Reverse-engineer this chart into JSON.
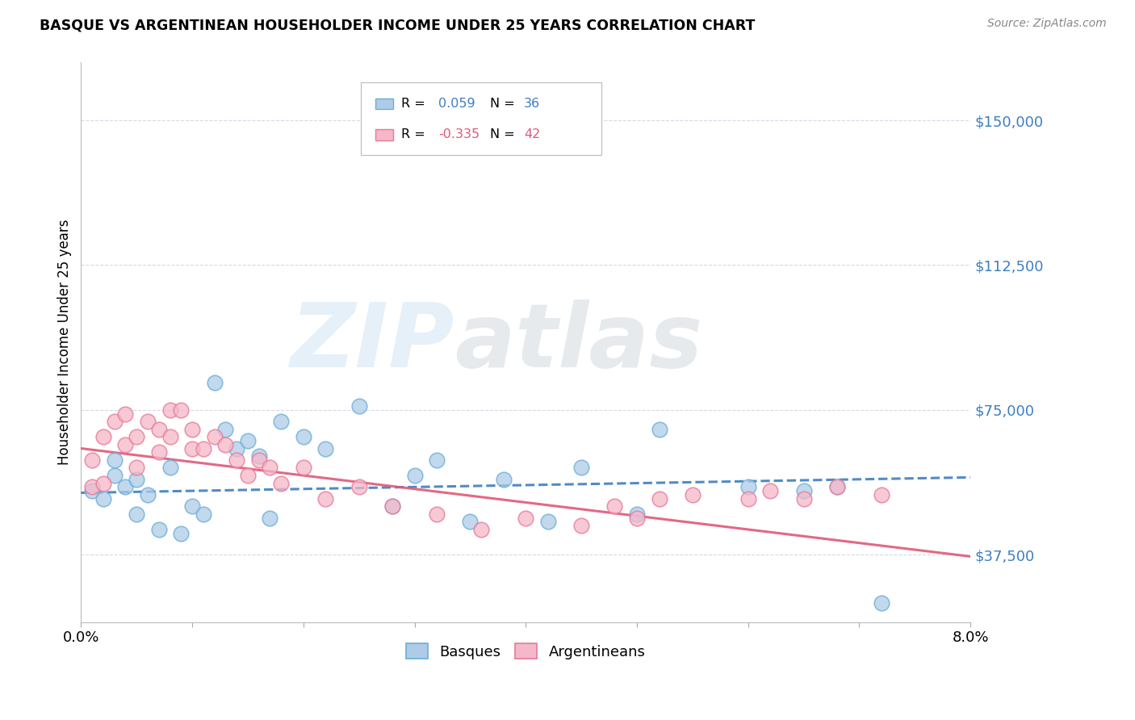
{
  "title": "BASQUE VS ARGENTINEAN HOUSEHOLDER INCOME UNDER 25 YEARS CORRELATION CHART",
  "source": "Source: ZipAtlas.com",
  "ylabel": "Householder Income Under 25 years",
  "xlim": [
    0.0,
    0.08
  ],
  "ylim": [
    20000,
    165000
  ],
  "yticks": [
    37500,
    75000,
    112500,
    150000
  ],
  "ytick_labels": [
    "$37,500",
    "$75,000",
    "$112,500",
    "$150,000"
  ],
  "background_color": "#ffffff",
  "grid_color": "#d8d8e8",
  "basque_R": 0.059,
  "basque_N": 36,
  "argentinean_R": -0.335,
  "argentinean_N": 42,
  "basque_color": "#aecce8",
  "basque_edge_color": "#6aaed6",
  "basque_line_color": "#3d7fc1",
  "argentinean_color": "#f5b8c8",
  "argentinean_edge_color": "#e87898",
  "argentinean_line_color": "#e05878",
  "basque_x": [
    0.001,
    0.002,
    0.003,
    0.003,
    0.004,
    0.005,
    0.005,
    0.006,
    0.007,
    0.008,
    0.009,
    0.01,
    0.011,
    0.012,
    0.013,
    0.014,
    0.015,
    0.016,
    0.017,
    0.018,
    0.02,
    0.022,
    0.025,
    0.028,
    0.03,
    0.032,
    0.035,
    0.038,
    0.042,
    0.045,
    0.05,
    0.052,
    0.06,
    0.065,
    0.068,
    0.072
  ],
  "basque_y": [
    54000,
    52000,
    58000,
    62000,
    55000,
    57000,
    48000,
    53000,
    44000,
    60000,
    43000,
    50000,
    48000,
    82000,
    70000,
    65000,
    67000,
    63000,
    47000,
    72000,
    68000,
    65000,
    76000,
    50000,
    58000,
    62000,
    46000,
    57000,
    46000,
    60000,
    48000,
    70000,
    55000,
    54000,
    55000,
    25000
  ],
  "argentinean_x": [
    0.001,
    0.001,
    0.002,
    0.002,
    0.003,
    0.004,
    0.004,
    0.005,
    0.005,
    0.006,
    0.007,
    0.007,
    0.008,
    0.008,
    0.009,
    0.01,
    0.01,
    0.011,
    0.012,
    0.013,
    0.014,
    0.015,
    0.016,
    0.017,
    0.018,
    0.02,
    0.022,
    0.025,
    0.028,
    0.032,
    0.036,
    0.04,
    0.045,
    0.048,
    0.05,
    0.052,
    0.055,
    0.06,
    0.062,
    0.065,
    0.068,
    0.072
  ],
  "argentinean_y": [
    62000,
    55000,
    68000,
    56000,
    72000,
    74000,
    66000,
    68000,
    60000,
    72000,
    70000,
    64000,
    68000,
    75000,
    75000,
    65000,
    70000,
    65000,
    68000,
    66000,
    62000,
    58000,
    62000,
    60000,
    56000,
    60000,
    52000,
    55000,
    50000,
    48000,
    44000,
    47000,
    45000,
    50000,
    47000,
    52000,
    53000,
    52000,
    54000,
    52000,
    55000,
    53000
  ],
  "legend_R1_color": "#3d7fc1",
  "legend_R2_color": "#e05878",
  "legend_N1_color": "#3d7fc1",
  "legend_N2_color": "#e05878"
}
